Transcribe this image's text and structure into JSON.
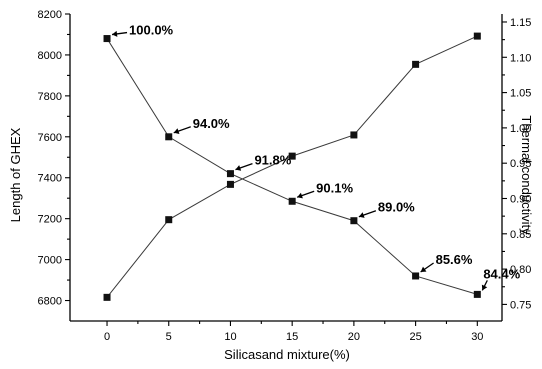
{
  "chart_data": {
    "type": "line",
    "xlabel": "Silicasand mixture(%)",
    "ylabel_left": "Length of GHEX",
    "ylabel_right": "Thermal conductivity",
    "x": [
      0,
      5,
      10,
      15,
      20,
      25,
      30
    ],
    "xlim": [
      -3,
      32
    ],
    "ylim_left": [
      6700,
      8200
    ],
    "ylim_right": [
      0.7265,
      1.1613
    ],
    "x_ticks": [
      "0",
      "5",
      "10",
      "15",
      "20",
      "25",
      "30"
    ],
    "y_left_ticks": [
      "6800",
      "7000",
      "7200",
      "7400",
      "7600",
      "7800",
      "8000",
      "8200"
    ],
    "y_right_ticks": [
      "0.75",
      "0.80",
      "0.85",
      "0.90",
      "0.95",
      "1.00",
      "1.05",
      "1.10",
      "1.15"
    ],
    "series": [
      {
        "axis": "left",
        "values": [
          8080,
          7600,
          7420,
          7285,
          7190,
          6920,
          6830
        ],
        "labels": [
          "100.0%",
          "94.0%",
          "91.8%",
          "90.1%",
          "89.0%",
          "85.6%",
          "84.4%"
        ]
      },
      {
        "axis": "right",
        "values": [
          0.76,
          0.87,
          0.92,
          0.96,
          0.99,
          1.09,
          1.13
        ]
      }
    ],
    "grid": false
  }
}
